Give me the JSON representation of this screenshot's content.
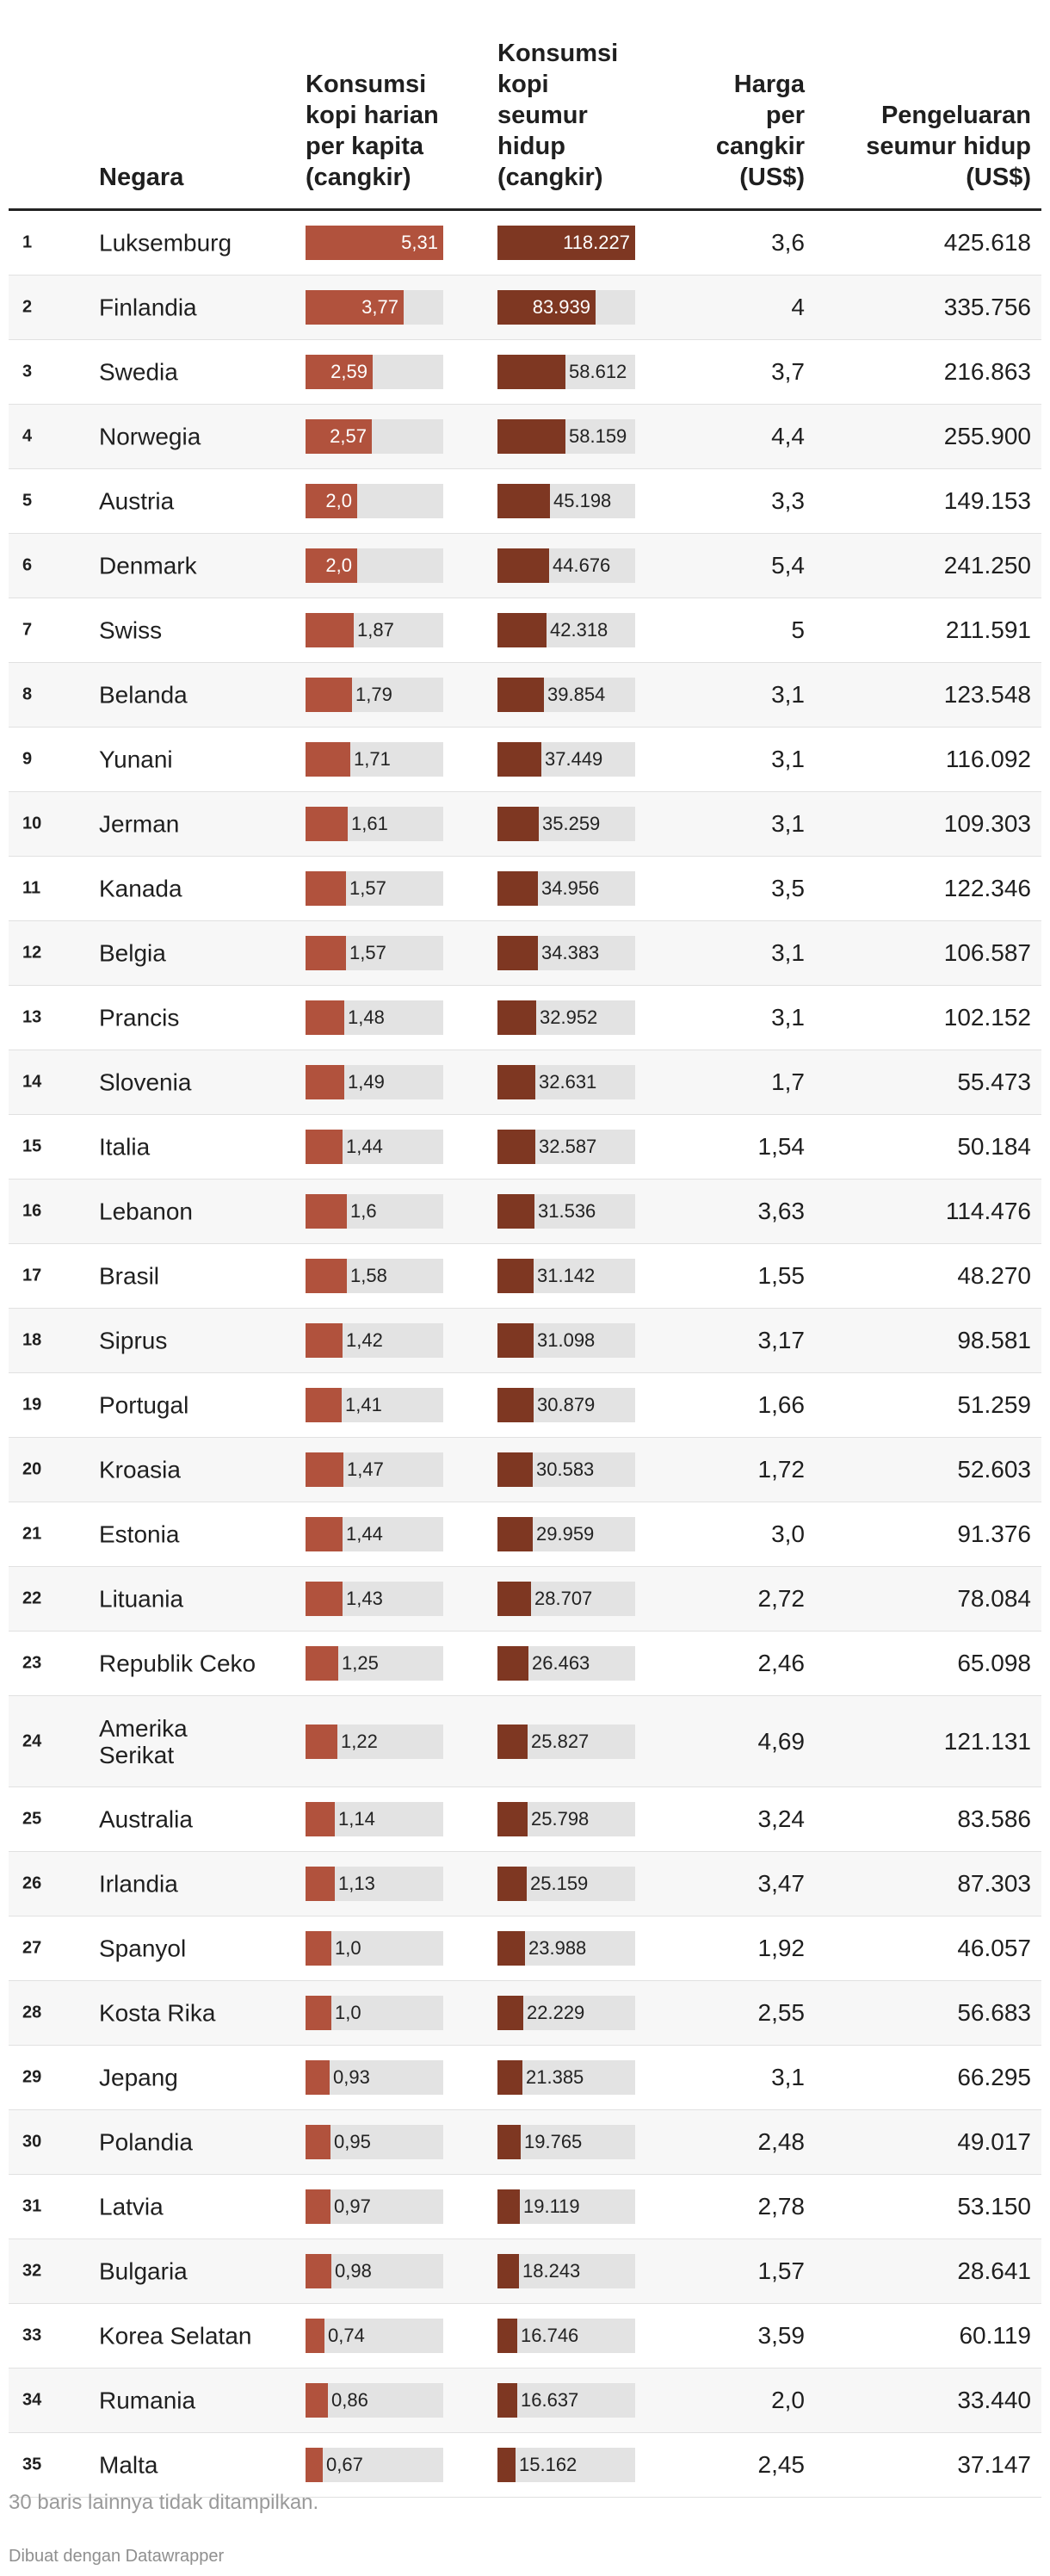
{
  "columns": {
    "country": "Negara",
    "daily": [
      "Konsumsi",
      "kopi harian",
      "per kapita",
      "(cangkir)"
    ],
    "lifetime": [
      "Konsumsi",
      "kopi",
      "seumur",
      "hidup",
      "(cangkir)"
    ],
    "price": [
      "Harga",
      "per",
      "cangkir",
      "(US$)"
    ],
    "spend": [
      "Pengeluaran",
      "seumur hidup",
      "(US$)"
    ]
  },
  "chart_data": {
    "type": "table",
    "bar_scales": {
      "daily_max": 5.31,
      "lifetime_max": 118227
    },
    "colors": {
      "daily_bar": "#b1523d",
      "lifetime_bar": "#7e3722",
      "bar_track": "#e3e3e3"
    },
    "rows": [
      {
        "rank": "1",
        "country": [
          "Luksemburg"
        ],
        "daily": 5.31,
        "daily_label": "5,31",
        "lifetime": 118227,
        "lifetime_label": "118.227",
        "price": "3,6",
        "spend": "425.618"
      },
      {
        "rank": "2",
        "country": [
          "Finlandia"
        ],
        "daily": 3.77,
        "daily_label": "3,77",
        "lifetime": 83939,
        "lifetime_label": "83.939",
        "price": "4",
        "spend": "335.756"
      },
      {
        "rank": "3",
        "country": [
          "Swedia"
        ],
        "daily": 2.59,
        "daily_label": "2,59",
        "lifetime": 58612,
        "lifetime_label": "58.612",
        "price": "3,7",
        "spend": "216.863"
      },
      {
        "rank": "4",
        "country": [
          "Norwegia"
        ],
        "daily": 2.57,
        "daily_label": "2,57",
        "lifetime": 58159,
        "lifetime_label": "58.159",
        "price": "4,4",
        "spend": "255.900"
      },
      {
        "rank": "5",
        "country": [
          "Austria"
        ],
        "daily": 2.0,
        "daily_label": "2,0",
        "lifetime": 45198,
        "lifetime_label": "45.198",
        "price": "3,3",
        "spend": "149.153"
      },
      {
        "rank": "6",
        "country": [
          "Denmark"
        ],
        "daily": 2.0,
        "daily_label": "2,0",
        "lifetime": 44676,
        "lifetime_label": "44.676",
        "price": "5,4",
        "spend": "241.250"
      },
      {
        "rank": "7",
        "country": [
          "Swiss"
        ],
        "daily": 1.87,
        "daily_label": "1,87",
        "lifetime": 42318,
        "lifetime_label": "42.318",
        "price": "5",
        "spend": "211.591"
      },
      {
        "rank": "8",
        "country": [
          "Belanda"
        ],
        "daily": 1.79,
        "daily_label": "1,79",
        "lifetime": 39854,
        "lifetime_label": "39.854",
        "price": "3,1",
        "spend": "123.548"
      },
      {
        "rank": "9",
        "country": [
          "Yunani"
        ],
        "daily": 1.71,
        "daily_label": "1,71",
        "lifetime": 37449,
        "lifetime_label": "37.449",
        "price": "3,1",
        "spend": "116.092"
      },
      {
        "rank": "10",
        "country": [
          "Jerman"
        ],
        "daily": 1.61,
        "daily_label": "1,61",
        "lifetime": 35259,
        "lifetime_label": "35.259",
        "price": "3,1",
        "spend": "109.303"
      },
      {
        "rank": "11",
        "country": [
          "Kanada"
        ],
        "daily": 1.57,
        "daily_label": "1,57",
        "lifetime": 34956,
        "lifetime_label": "34.956",
        "price": "3,5",
        "spend": "122.346"
      },
      {
        "rank": "12",
        "country": [
          "Belgia"
        ],
        "daily": 1.57,
        "daily_label": "1,57",
        "lifetime": 34383,
        "lifetime_label": "34.383",
        "price": "3,1",
        "spend": "106.587"
      },
      {
        "rank": "13",
        "country": [
          "Prancis"
        ],
        "daily": 1.48,
        "daily_label": "1,48",
        "lifetime": 32952,
        "lifetime_label": "32.952",
        "price": "3,1",
        "spend": "102.152"
      },
      {
        "rank": "14",
        "country": [
          "Slovenia"
        ],
        "daily": 1.49,
        "daily_label": "1,49",
        "lifetime": 32631,
        "lifetime_label": "32.631",
        "price": "1,7",
        "spend": "55.473"
      },
      {
        "rank": "15",
        "country": [
          "Italia"
        ],
        "daily": 1.44,
        "daily_label": "1,44",
        "lifetime": 32587,
        "lifetime_label": "32.587",
        "price": "1,54",
        "spend": "50.184"
      },
      {
        "rank": "16",
        "country": [
          "Lebanon"
        ],
        "daily": 1.6,
        "daily_label": "1,6",
        "lifetime": 31536,
        "lifetime_label": "31.536",
        "price": "3,63",
        "spend": "114.476"
      },
      {
        "rank": "17",
        "country": [
          "Brasil"
        ],
        "daily": 1.58,
        "daily_label": "1,58",
        "lifetime": 31142,
        "lifetime_label": "31.142",
        "price": "1,55",
        "spend": "48.270"
      },
      {
        "rank": "18",
        "country": [
          "Siprus"
        ],
        "daily": 1.42,
        "daily_label": "1,42",
        "lifetime": 31098,
        "lifetime_label": "31.098",
        "price": "3,17",
        "spend": "98.581"
      },
      {
        "rank": "19",
        "country": [
          "Portugal"
        ],
        "daily": 1.41,
        "daily_label": "1,41",
        "lifetime": 30879,
        "lifetime_label": "30.879",
        "price": "1,66",
        "spend": "51.259"
      },
      {
        "rank": "20",
        "country": [
          "Kroasia"
        ],
        "daily": 1.47,
        "daily_label": "1,47",
        "lifetime": 30583,
        "lifetime_label": "30.583",
        "price": "1,72",
        "spend": "52.603"
      },
      {
        "rank": "21",
        "country": [
          "Estonia"
        ],
        "daily": 1.44,
        "daily_label": "1,44",
        "lifetime": 29959,
        "lifetime_label": "29.959",
        "price": "3,0",
        "spend": "91.376"
      },
      {
        "rank": "22",
        "country": [
          "Lituania"
        ],
        "daily": 1.43,
        "daily_label": "1,43",
        "lifetime": 28707,
        "lifetime_label": "28.707",
        "price": "2,72",
        "spend": "78.084"
      },
      {
        "rank": "23",
        "country": [
          "Republik Ceko"
        ],
        "daily": 1.25,
        "daily_label": "1,25",
        "lifetime": 26463,
        "lifetime_label": "26.463",
        "price": "2,46",
        "spend": "65.098"
      },
      {
        "rank": "24",
        "country": [
          "Amerika",
          "Serikat"
        ],
        "daily": 1.22,
        "daily_label": "1,22",
        "lifetime": 25827,
        "lifetime_label": "25.827",
        "price": "4,69",
        "spend": "121.131"
      },
      {
        "rank": "25",
        "country": [
          "Australia"
        ],
        "daily": 1.14,
        "daily_label": "1,14",
        "lifetime": 25798,
        "lifetime_label": "25.798",
        "price": "3,24",
        "spend": "83.586"
      },
      {
        "rank": "26",
        "country": [
          "Irlandia"
        ],
        "daily": 1.13,
        "daily_label": "1,13",
        "lifetime": 25159,
        "lifetime_label": "25.159",
        "price": "3,47",
        "spend": "87.303"
      },
      {
        "rank": "27",
        "country": [
          "Spanyol"
        ],
        "daily": 1.0,
        "daily_label": "1,0",
        "lifetime": 23988,
        "lifetime_label": "23.988",
        "price": "1,92",
        "spend": "46.057"
      },
      {
        "rank": "28",
        "country": [
          "Kosta Rika"
        ],
        "daily": 1.0,
        "daily_label": "1,0",
        "lifetime": 22229,
        "lifetime_label": "22.229",
        "price": "2,55",
        "spend": "56.683"
      },
      {
        "rank": "29",
        "country": [
          "Jepang"
        ],
        "daily": 0.93,
        "daily_label": "0,93",
        "lifetime": 21385,
        "lifetime_label": "21.385",
        "price": "3,1",
        "spend": "66.295"
      },
      {
        "rank": "30",
        "country": [
          "Polandia"
        ],
        "daily": 0.95,
        "daily_label": "0,95",
        "lifetime": 19765,
        "lifetime_label": "19.765",
        "price": "2,48",
        "spend": "49.017"
      },
      {
        "rank": "31",
        "country": [
          "Latvia"
        ],
        "daily": 0.97,
        "daily_label": "0,97",
        "lifetime": 19119,
        "lifetime_label": "19.119",
        "price": "2,78",
        "spend": "53.150"
      },
      {
        "rank": "32",
        "country": [
          "Bulgaria"
        ],
        "daily": 0.98,
        "daily_label": "0,98",
        "lifetime": 18243,
        "lifetime_label": "18.243",
        "price": "1,57",
        "spend": "28.641"
      },
      {
        "rank": "33",
        "country": [
          "Korea Selatan"
        ],
        "daily": 0.74,
        "daily_label": "0,74",
        "lifetime": 16746,
        "lifetime_label": "16.746",
        "price": "3,59",
        "spend": "60.119"
      },
      {
        "rank": "34",
        "country": [
          "Rumania"
        ],
        "daily": 0.86,
        "daily_label": "0,86",
        "lifetime": 16637,
        "lifetime_label": "16.637",
        "price": "2,0",
        "spend": "33.440"
      },
      {
        "rank": "35",
        "country": [
          "Malta"
        ],
        "daily": 0.67,
        "daily_label": "0,67",
        "lifetime": 15162,
        "lifetime_label": "15.162",
        "price": "2,45",
        "spend": "37.147"
      }
    ]
  },
  "footer": {
    "note": "30 baris lainnya tidak ditampilkan.",
    "credit": "Dibuat dengan Datawrapper"
  }
}
